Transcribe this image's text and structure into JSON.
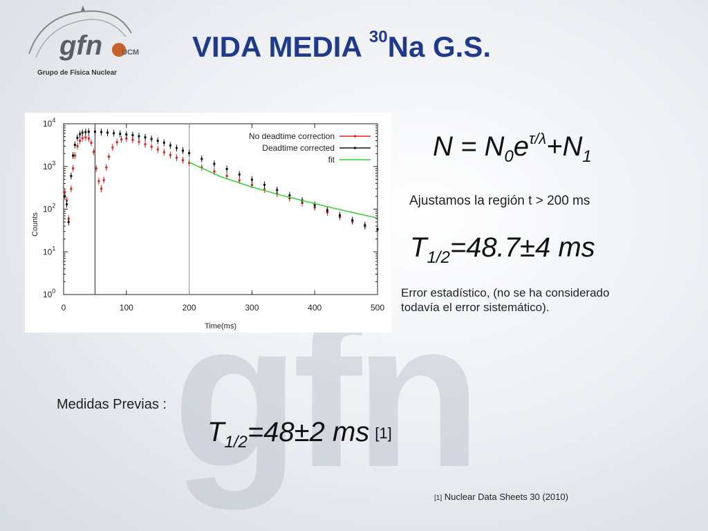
{
  "slide": {
    "title_main": "VIDA MEDIA ",
    "title_sup": "30",
    "title_rest": "Na G.S.",
    "watermark": "gfn"
  },
  "logo": {
    "main": "gfn",
    "ucm": "UCM",
    "subtitle": "Grupo de Física Nuclear"
  },
  "formula": {
    "lhs": "N = N",
    "sub0": "0",
    "e": "e",
    "exp": "τ/λ",
    "plus": "+N",
    "sub1": "1"
  },
  "fit_note": "Ajustamos la región t > 200 ms",
  "result": {
    "prefix": "T",
    "sub": "1/2",
    "value": "=48.7±4 ms"
  },
  "error_note": "Error estadístico, (no se ha considerado todavía el error sistemático).",
  "previous": {
    "label": "Medidas Previas :",
    "prefix": "T",
    "sub": "1/2",
    "value": "=48±2 ms",
    "ref": "[1]"
  },
  "footnote": {
    "mark": "[1]",
    "text": " Nuclear Data Sheets 30 (2010)"
  },
  "chart_data": {
    "type": "scatter",
    "xlabel": "Time(ms)",
    "ylabel": "Counts",
    "xlim": [
      0,
      500
    ],
    "ylim": [
      1,
      10000
    ],
    "yscale": "log",
    "xticks": [
      0,
      100,
      200,
      300,
      400,
      500
    ],
    "yticks": [
      {
        "base": "10",
        "exp": "0"
      },
      {
        "base": "10",
        "exp": "1"
      },
      {
        "base": "10",
        "exp": "2"
      },
      {
        "base": "10",
        "exp": "3"
      },
      {
        "base": "10",
        "exp": "4"
      }
    ],
    "vlines": [
      {
        "x": 0,
        "color": "#222222"
      },
      {
        "x": 50,
        "color": "#222222"
      },
      {
        "x": 200,
        "color": "#40b0e0"
      }
    ],
    "legend_position": "top-right",
    "series": [
      {
        "name": "No deadtime correction",
        "color": "#e02020",
        "points": [
          [
            2,
            250
          ],
          [
            5,
            160
          ],
          [
            8,
            60
          ],
          [
            12,
            300
          ],
          [
            15,
            900
          ],
          [
            18,
            1800
          ],
          [
            22,
            3000
          ],
          [
            26,
            4000
          ],
          [
            30,
            4600
          ],
          [
            35,
            4800
          ],
          [
            40,
            4500
          ],
          [
            44,
            3600
          ],
          [
            48,
            2200
          ],
          [
            52,
            900
          ],
          [
            56,
            450
          ],
          [
            60,
            300
          ],
          [
            64,
            480
          ],
          [
            68,
            950
          ],
          [
            72,
            1700
          ],
          [
            78,
            2800
          ],
          [
            85,
            3700
          ],
          [
            92,
            4300
          ],
          [
            100,
            4500
          ],
          [
            110,
            4200
          ],
          [
            120,
            3800
          ],
          [
            130,
            3300
          ],
          [
            140,
            2900
          ],
          [
            150,
            2500
          ],
          [
            160,
            2150
          ],
          [
            170,
            1850
          ],
          [
            180,
            1600
          ],
          [
            190,
            1400
          ],
          [
            200,
            1220
          ],
          [
            220,
            950
          ],
          [
            240,
            760
          ],
          [
            260,
            600
          ],
          [
            280,
            470
          ],
          [
            300,
            370
          ],
          [
            320,
            290
          ],
          [
            340,
            230
          ],
          [
            360,
            180
          ],
          [
            380,
            140
          ],
          [
            400,
            110
          ],
          [
            420,
            85
          ],
          [
            440,
            66
          ],
          [
            460,
            52
          ],
          [
            480,
            40
          ],
          [
            500,
            33
          ]
        ]
      },
      {
        "name": "Deadtime corrected",
        "color": "#111111",
        "points": [
          [
            2,
            200
          ],
          [
            5,
            130
          ],
          [
            8,
            50
          ],
          [
            12,
            600
          ],
          [
            15,
            1800
          ],
          [
            18,
            3200
          ],
          [
            22,
            4700
          ],
          [
            26,
            5700
          ],
          [
            30,
            6200
          ],
          [
            35,
            6400
          ],
          [
            40,
            6500
          ],
          [
            50,
            6500
          ],
          [
            60,
            6400
          ],
          [
            70,
            6200
          ],
          [
            80,
            6000
          ],
          [
            90,
            5800
          ],
          [
            100,
            5600
          ],
          [
            110,
            5400
          ],
          [
            120,
            5100
          ],
          [
            130,
            4800
          ],
          [
            140,
            4400
          ],
          [
            150,
            4000
          ],
          [
            160,
            3600
          ],
          [
            170,
            3100
          ],
          [
            180,
            2700
          ],
          [
            190,
            2350
          ],
          [
            200,
            2050
          ],
          [
            220,
            1500
          ],
          [
            240,
            1150
          ],
          [
            260,
            870
          ],
          [
            280,
            650
          ],
          [
            300,
            490
          ],
          [
            320,
            370
          ],
          [
            340,
            280
          ],
          [
            360,
            210
          ],
          [
            380,
            160
          ],
          [
            400,
            125
          ],
          [
            420,
            95
          ],
          [
            440,
            72
          ],
          [
            460,
            55
          ],
          [
            480,
            42
          ],
          [
            500,
            34
          ]
        ]
      },
      {
        "name": "fit",
        "color": "#30d030",
        "points": [
          [
            200,
            1250
          ],
          [
            250,
            580
          ],
          [
            300,
            330
          ],
          [
            350,
            205
          ],
          [
            400,
            135
          ],
          [
            450,
            90
          ],
          [
            500,
            62
          ]
        ]
      }
    ],
    "annotations": []
  },
  "colors": {
    "title": "#1f3a8a",
    "red_series": "#e02020",
    "black_series": "#111111",
    "fit_line": "#30d030",
    "marker_line": "#40b0e0"
  }
}
